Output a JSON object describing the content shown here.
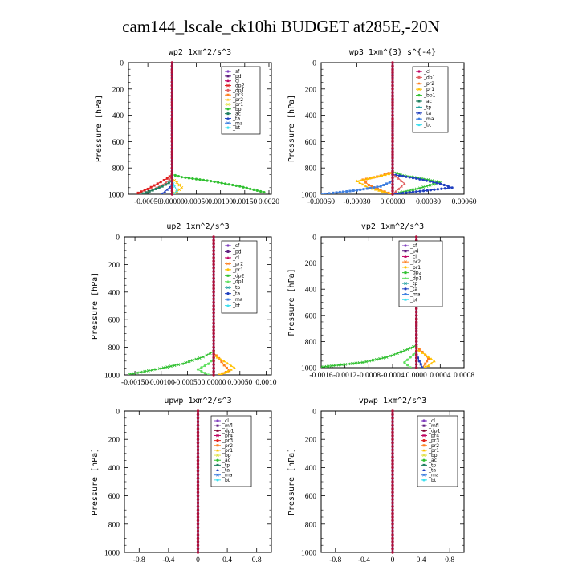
{
  "page_title": "cam144_lscale_ck10hi  BUDGET at285E,-20N",
  "chart_data": [
    {
      "type": "line",
      "title": "wp2   1xm^2/s^3",
      "ylabel": "Pressure [hPa]",
      "ylim": [
        1000,
        0
      ],
      "xlim": [
        -0.0009,
        0.00205
      ],
      "y_ticks": [
        0,
        200,
        400,
        600,
        800,
        1000
      ],
      "x_ticks": [
        -0.0005,
        0.0,
        0.0005,
        0.001,
        0.0015,
        0.002
      ],
      "x_tick_labels": [
        "-0.00050",
        "0.00000",
        "0.00050",
        "0.00100",
        "0.00150",
        "0.0020"
      ],
      "legend": [
        "_sf",
        "_pd",
        "_cl",
        "_dp2",
        "_dp1",
        "_pr3",
        "_pr2",
        "_pr1",
        "_bp",
        "_ac",
        "_ta",
        "_ma",
        "_bt"
      ],
      "legend_colors": [
        "#8040c0",
        "#602080",
        "#c00060",
        "#e02020",
        "#e06060",
        "#ff8020",
        "#ffc000",
        "#e0e040",
        "#30c030",
        "#208060",
        "#2040c0",
        "#4080e0",
        "#40e0f0"
      ],
      "series": [
        {
          "name": "_sf",
          "x": [
            0,
            0,
            0,
            0,
            0,
            0,
            0,
            0
          ],
          "y": [
            0,
            200,
            400,
            600,
            800,
            900,
            960,
            1000
          ]
        },
        {
          "name": "_dp2",
          "x": [
            0,
            -0.0001,
            -0.0003,
            -0.0005,
            -0.0007
          ],
          "y": [
            850,
            880,
            920,
            960,
            990
          ]
        },
        {
          "name": "_dp1",
          "x": [
            0,
            -5e-05,
            -0.0002,
            -0.0004,
            -0.0006
          ],
          "y": [
            860,
            890,
            930,
            965,
            995
          ]
        },
        {
          "name": "_pr2",
          "x": [
            0,
            0.0001,
            0.0002,
            0.0001,
            0
          ],
          "y": [
            880,
            910,
            950,
            980,
            1000
          ]
        },
        {
          "name": "_bp",
          "x": [
            0,
            0.0002,
            0.0008,
            0.0014,
            0.0019
          ],
          "y": [
            850,
            870,
            900,
            940,
            985
          ]
        },
        {
          "name": "_ac",
          "x": [
            0,
            -0.0002,
            -0.0004,
            -0.0006
          ],
          "y": [
            900,
            940,
            970,
            995
          ]
        },
        {
          "name": "_ta",
          "x": [
            0,
            -0.0001,
            -0.0002
          ],
          "y": [
            930,
            965,
            995
          ]
        },
        {
          "name": "_bt",
          "x": [
            0,
            5e-05,
            0.0001,
            5e-05
          ],
          "y": [
            900,
            940,
            970,
            995
          ]
        }
      ]
    },
    {
      "type": "line",
      "title": "wp3   1xm^{3} s^{-4}",
      "ylabel": "Pressure [hPa]",
      "ylim": [
        1000,
        0
      ],
      "xlim": [
        -0.0006,
        0.0006
      ],
      "y_ticks": [
        0,
        200,
        400,
        600,
        800,
        1000
      ],
      "x_ticks": [
        -0.0006,
        -0.0003,
        0.0,
        0.0003,
        0.0006
      ],
      "x_tick_labels": [
        "-0.00060",
        "-0.00030",
        "0.00000",
        "0.00030",
        "0.00060"
      ],
      "legend": [
        "_cl",
        "_dp1",
        "_pr2",
        "_pr1",
        "_bp1",
        "_ac",
        "_tp",
        "_ta",
        "_ma",
        "_bt"
      ],
      "legend_colors": [
        "#c00060",
        "#e06060",
        "#ff8020",
        "#ffc000",
        "#30c030",
        "#208060",
        "#20a0a0",
        "#2040c0",
        "#4080e0",
        "#40e0f0"
      ],
      "series": [
        {
          "name": "_cl",
          "x": [
            0,
            0,
            0,
            0,
            0,
            0,
            0
          ],
          "y": [
            0,
            200,
            400,
            600,
            800,
            900,
            1000
          ]
        },
        {
          "name": "_pr2",
          "x": [
            0,
            -0.0001,
            -0.00025,
            -0.0002,
            -0.0001,
            0
          ],
          "y": [
            830,
            860,
            890,
            930,
            970,
            1000
          ]
        },
        {
          "name": "_pr1",
          "x": [
            0,
            -0.00015,
            -0.0003,
            -0.0002,
            0
          ],
          "y": [
            840,
            870,
            900,
            950,
            1000
          ]
        },
        {
          "name": "_bp1",
          "x": [
            0,
            0.0001,
            0.0003,
            0.0004,
            0.0002,
            0
          ],
          "y": [
            830,
            860,
            890,
            910,
            960,
            1000
          ]
        },
        {
          "name": "_ta",
          "x": [
            0,
            0.0002,
            0.0004,
            0.0005,
            0.0002,
            0
          ],
          "y": [
            850,
            880,
            920,
            950,
            980,
            1000
          ]
        },
        {
          "name": "_ma",
          "x": [
            0,
            -0.0001,
            -0.0003,
            -0.0005,
            -0.0006
          ],
          "y": [
            900,
            940,
            970,
            990,
            1000
          ]
        },
        {
          "name": "_dp1",
          "x": [
            0,
            5e-05,
            0.0001,
            5e-05,
            0
          ],
          "y": [
            850,
            880,
            920,
            960,
            1000
          ]
        }
      ]
    },
    {
      "type": "line",
      "title": "up2   1xm^2/s^3",
      "ylabel": "Pressure [hPa]",
      "ylim": [
        1000,
        0
      ],
      "xlim": [
        -0.0017,
        0.0011
      ],
      "y_ticks": [
        0,
        200,
        400,
        600,
        800,
        1000
      ],
      "x_ticks": [
        -0.0015,
        -0.001,
        -0.0005,
        0.0,
        0.0005,
        0.001
      ],
      "x_tick_labels": [
        "-0.00150",
        "-0.00100",
        "-0.00050",
        "0.00000",
        "0.00050",
        "0.0010"
      ],
      "legend": [
        "_sf",
        "_pd",
        "_cl",
        "_pr2",
        "_pr1",
        "_dp2",
        "_dp1",
        "_tp",
        "_ta",
        "_ma",
        "_bt"
      ],
      "legend_colors": [
        "#8040c0",
        "#602080",
        "#c00060",
        "#ff8020",
        "#ffc000",
        "#30c030",
        "#60e060",
        "#20a0a0",
        "#2040c0",
        "#4080e0",
        "#40e0f0"
      ],
      "series": [
        {
          "name": "_cl",
          "x": [
            0,
            0,
            0,
            0,
            0,
            0,
            0
          ],
          "y": [
            0,
            200,
            400,
            600,
            800,
            900,
            1000
          ]
        },
        {
          "name": "_pr2",
          "x": [
            0,
            0.0001,
            0.0002,
            0.0003,
            0.0001
          ],
          "y": [
            840,
            880,
            930,
            970,
            1000
          ]
        },
        {
          "name": "_pr1",
          "x": [
            0,
            0.0002,
            0.0004,
            0.0002,
            0.0001
          ],
          "y": [
            860,
            900,
            950,
            985,
            1000
          ]
        },
        {
          "name": "_dp2",
          "x": [
            0,
            -0.0002,
            -0.0006,
            -0.0011,
            -0.0016
          ],
          "y": [
            830,
            870,
            920,
            960,
            995
          ]
        },
        {
          "name": "_dp1",
          "x": [
            0,
            -0.0001,
            -0.0003,
            -0.0001
          ],
          "y": [
            880,
            920,
            960,
            1000
          ]
        }
      ]
    },
    {
      "type": "line",
      "title": "vp2   1xm^2/s^3",
      "ylabel": "Pressure [hPa]",
      "ylim": [
        1000,
        0
      ],
      "xlim": [
        -0.0016,
        0.0008
      ],
      "y_ticks": [
        0,
        200,
        400,
        600,
        800,
        1000
      ],
      "x_ticks": [
        -0.0016,
        -0.0012,
        -0.0008,
        -0.0004,
        0.0,
        0.0004,
        0.0008
      ],
      "x_tick_labels": [
        "-0.0016",
        "-0.0012",
        "-0.0008",
        "-0.0004",
        "0.0000",
        "0.0004",
        "0.0008"
      ],
      "legend": [
        "_sf",
        "_pd",
        "_cl",
        "_pr2",
        "_pr1",
        "_dp2",
        "_dp1",
        "_tp",
        "_ta",
        "_ma",
        "_bt"
      ],
      "legend_colors": [
        "#8040c0",
        "#602080",
        "#c00060",
        "#ff8020",
        "#ffc000",
        "#30c030",
        "#60e060",
        "#20a0a0",
        "#2040c0",
        "#4080e0",
        "#40e0f0"
      ],
      "series": [
        {
          "name": "_cl",
          "x": [
            0,
            0,
            0,
            0,
            0,
            0,
            0
          ],
          "y": [
            0,
            200,
            400,
            600,
            800,
            900,
            1000
          ]
        },
        {
          "name": "_pr2",
          "x": [
            0,
            0.0001,
            0.0002,
            0.00015,
            0.0001
          ],
          "y": [
            840,
            880,
            930,
            970,
            1000
          ]
        },
        {
          "name": "_pr1",
          "x": [
            0,
            0.00015,
            0.0003,
            0.0002,
            0.0001
          ],
          "y": [
            860,
            900,
            950,
            985,
            1000
          ]
        },
        {
          "name": "_dp2",
          "x": [
            0,
            -0.0002,
            -0.0005,
            -0.0009,
            -0.0016
          ],
          "y": [
            830,
            870,
            920,
            960,
            995
          ]
        },
        {
          "name": "_dp1",
          "x": [
            0,
            -0.0001,
            -0.0002,
            -0.0001
          ],
          "y": [
            880,
            920,
            960,
            1000
          ]
        },
        {
          "name": "_ta",
          "x": [
            0,
            5e-05,
            0.0001
          ],
          "y": [
            900,
            950,
            1000
          ]
        }
      ]
    },
    {
      "type": "line",
      "title": "upwp   1xm^2/s^3",
      "ylabel": "Pressure [hPa]",
      "ylim": [
        1000,
        0
      ],
      "xlim": [
        -1,
        1
      ],
      "y_ticks": [
        0,
        200,
        400,
        600,
        800,
        1000
      ],
      "x_ticks": [
        -0.8,
        -0.4,
        0,
        0.4,
        0.8
      ],
      "x_tick_labels": [
        "-0.8",
        "-0.4",
        "0",
        "0.4",
        "0.8"
      ],
      "legend": [
        "_cl",
        "_mfl",
        "_dp1",
        "_pr4",
        "_pr3",
        "_pr2",
        "_pr1",
        "_bp",
        "_ac",
        "_tp",
        "_ta",
        "_ma",
        "_bt"
      ],
      "legend_colors": [
        "#8040c0",
        "#602080",
        "#800030",
        "#c00060",
        "#e02020",
        "#ff8020",
        "#ffc000",
        "#e0e040",
        "#30c030",
        "#208060",
        "#2040c0",
        "#4080e0",
        "#40e0f0"
      ],
      "series": [
        {
          "name": "_cl",
          "x": [
            0,
            0,
            0,
            0,
            0,
            0,
            0,
            0,
            0,
            0,
            0
          ],
          "y": [
            0,
            100,
            200,
            300,
            400,
            500,
            600,
            700,
            800,
            900,
            1000
          ]
        }
      ]
    },
    {
      "type": "line",
      "title": "vpwp   1xm^2/s^3",
      "ylabel": "Pressure [hPa]",
      "ylim": [
        1000,
        0
      ],
      "xlim": [
        -1,
        1
      ],
      "y_ticks": [
        0,
        200,
        400,
        600,
        800,
        1000
      ],
      "x_ticks": [
        -0.8,
        -0.4,
        0,
        0.4,
        0.8
      ],
      "x_tick_labels": [
        "-0.8",
        "-0.4",
        "0",
        "0.4",
        "0.8"
      ],
      "legend": [
        "_cl",
        "_mfl",
        "_dp1",
        "_pr4",
        "_pr3",
        "_pr2",
        "_pr1",
        "_bp",
        "_ac",
        "_tp",
        "_ta",
        "_ma",
        "_bt"
      ],
      "legend_colors": [
        "#8040c0",
        "#602080",
        "#800030",
        "#c00060",
        "#e02020",
        "#ff8020",
        "#ffc000",
        "#e0e040",
        "#30c030",
        "#208060",
        "#2040c0",
        "#4080e0",
        "#40e0f0"
      ],
      "series": [
        {
          "name": "_cl",
          "x": [
            0,
            0,
            0,
            0,
            0,
            0,
            0,
            0,
            0,
            0,
            0
          ],
          "y": [
            0,
            100,
            200,
            300,
            400,
            500,
            600,
            700,
            800,
            900,
            1000
          ]
        }
      ]
    }
  ]
}
